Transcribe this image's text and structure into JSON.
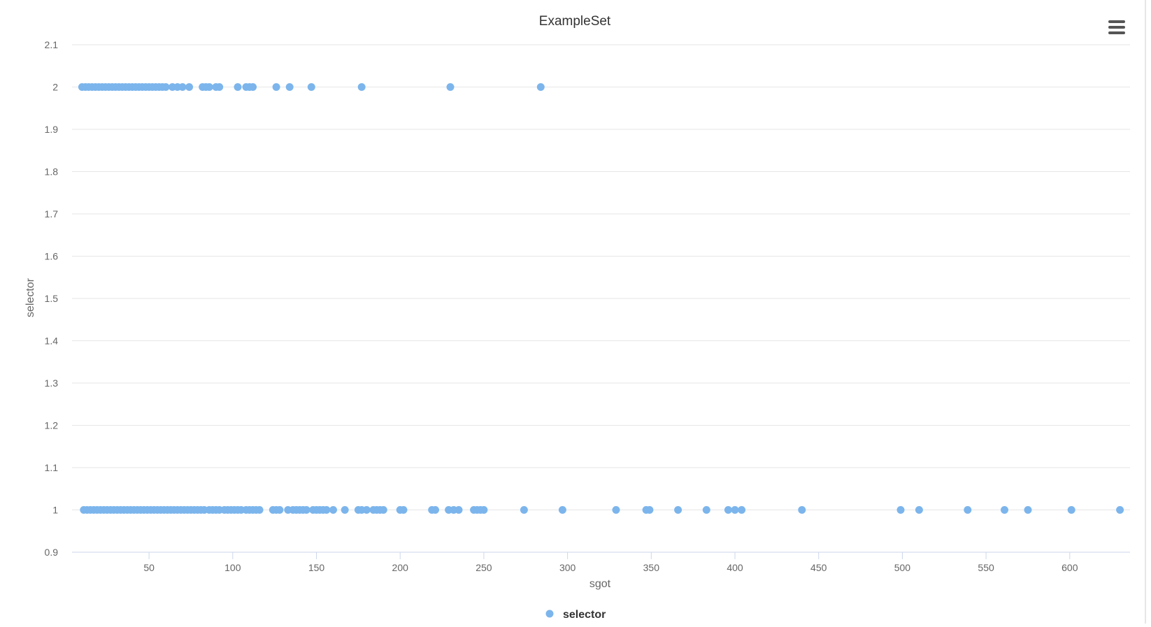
{
  "menu": {
    "icon": "hamburger-menu-icon"
  },
  "chart_data": {
    "type": "scatter",
    "title": "ExampleSet",
    "xlabel": "sgot",
    "ylabel": "selector",
    "xlim": [
      4,
      636
    ],
    "ylim": [
      0.9,
      2.1
    ],
    "xticks": [
      50,
      100,
      150,
      200,
      250,
      300,
      350,
      400,
      450,
      500,
      550,
      600
    ],
    "yticks": [
      0.9,
      1,
      1.1,
      1.2,
      1.3,
      1.4,
      1.5,
      1.6,
      1.7,
      1.8,
      1.9,
      2,
      2.1
    ],
    "ytick_labels": [
      "0.9",
      "1",
      "1.1",
      "1.2",
      "1.3",
      "1.4",
      "1.5",
      "1.6",
      "1.7",
      "1.8",
      "1.9",
      "2",
      "2.1"
    ],
    "grid": true,
    "legend": {
      "position": "bottom-center",
      "items": [
        "selector"
      ]
    },
    "color": "#7cb5ec",
    "series": [
      {
        "name": "selector",
        "points": [
          [
            10,
            2
          ],
          [
            12,
            2
          ],
          [
            14,
            2
          ],
          [
            16,
            2
          ],
          [
            18,
            2
          ],
          [
            20,
            2
          ],
          [
            22,
            2
          ],
          [
            24,
            2
          ],
          [
            26,
            2
          ],
          [
            28,
            2
          ],
          [
            30,
            2
          ],
          [
            32,
            2
          ],
          [
            34,
            2
          ],
          [
            36,
            2
          ],
          [
            38,
            2
          ],
          [
            40,
            2
          ],
          [
            42,
            2
          ],
          [
            44,
            2
          ],
          [
            46,
            2
          ],
          [
            48,
            2
          ],
          [
            50,
            2
          ],
          [
            52,
            2
          ],
          [
            54,
            2
          ],
          [
            56,
            2
          ],
          [
            58,
            2
          ],
          [
            60,
            2
          ],
          [
            64,
            2
          ],
          [
            67,
            2
          ],
          [
            70,
            2
          ],
          [
            74,
            2
          ],
          [
            82,
            2
          ],
          [
            84,
            2
          ],
          [
            86,
            2
          ],
          [
            90,
            2
          ],
          [
            92,
            2
          ],
          [
            103,
            2
          ],
          [
            108,
            2
          ],
          [
            110,
            2
          ],
          [
            112,
            2
          ],
          [
            126,
            2
          ],
          [
            134,
            2
          ],
          [
            147,
            2
          ],
          [
            177,
            2
          ],
          [
            230,
            2
          ],
          [
            284,
            2
          ],
          [
            11,
            1
          ],
          [
            13,
            1
          ],
          [
            15,
            1
          ],
          [
            17,
            1
          ],
          [
            19,
            1
          ],
          [
            21,
            1
          ],
          [
            23,
            1
          ],
          [
            25,
            1
          ],
          [
            27,
            1
          ],
          [
            29,
            1
          ],
          [
            31,
            1
          ],
          [
            33,
            1
          ],
          [
            35,
            1
          ],
          [
            37,
            1
          ],
          [
            39,
            1
          ],
          [
            41,
            1
          ],
          [
            43,
            1
          ],
          [
            45,
            1
          ],
          [
            47,
            1
          ],
          [
            49,
            1
          ],
          [
            51,
            1
          ],
          [
            53,
            1
          ],
          [
            55,
            1
          ],
          [
            57,
            1
          ],
          [
            59,
            1
          ],
          [
            61,
            1
          ],
          [
            63,
            1
          ],
          [
            65,
            1
          ],
          [
            67,
            1
          ],
          [
            69,
            1
          ],
          [
            71,
            1
          ],
          [
            73,
            1
          ],
          [
            75,
            1
          ],
          [
            77,
            1
          ],
          [
            79,
            1
          ],
          [
            81,
            1
          ],
          [
            83,
            1
          ],
          [
            86,
            1
          ],
          [
            88,
            1
          ],
          [
            90,
            1
          ],
          [
            92,
            1
          ],
          [
            95,
            1
          ],
          [
            97,
            1
          ],
          [
            99,
            1
          ],
          [
            101,
            1
          ],
          [
            103,
            1
          ],
          [
            105,
            1
          ],
          [
            108,
            1
          ],
          [
            110,
            1
          ],
          [
            112,
            1
          ],
          [
            114,
            1
          ],
          [
            116,
            1
          ],
          [
            124,
            1
          ],
          [
            126,
            1
          ],
          [
            128,
            1
          ],
          [
            133,
            1
          ],
          [
            136,
            1
          ],
          [
            138,
            1
          ],
          [
            140,
            1
          ],
          [
            142,
            1
          ],
          [
            144,
            1
          ],
          [
            148,
            1
          ],
          [
            150,
            1
          ],
          [
            152,
            1
          ],
          [
            154,
            1
          ],
          [
            156,
            1
          ],
          [
            160,
            1
          ],
          [
            167,
            1
          ],
          [
            175,
            1
          ],
          [
            177,
            1
          ],
          [
            180,
            1
          ],
          [
            184,
            1
          ],
          [
            186,
            1
          ],
          [
            188,
            1
          ],
          [
            190,
            1
          ],
          [
            200,
            1
          ],
          [
            202,
            1
          ],
          [
            219,
            1
          ],
          [
            221,
            1
          ],
          [
            229,
            1
          ],
          [
            232,
            1
          ],
          [
            235,
            1
          ],
          [
            244,
            1
          ],
          [
            246,
            1
          ],
          [
            248,
            1
          ],
          [
            250,
            1
          ],
          [
            274,
            1
          ],
          [
            297,
            1
          ],
          [
            329,
            1
          ],
          [
            347,
            1
          ],
          [
            349,
            1
          ],
          [
            366,
            1
          ],
          [
            383,
            1
          ],
          [
            396,
            1
          ],
          [
            400,
            1
          ],
          [
            404,
            1
          ],
          [
            440,
            1
          ],
          [
            499,
            1
          ],
          [
            510,
            1
          ],
          [
            539,
            1
          ],
          [
            561,
            1
          ],
          [
            575,
            1
          ],
          [
            601,
            1
          ],
          [
            630,
            1
          ]
        ]
      }
    ]
  }
}
